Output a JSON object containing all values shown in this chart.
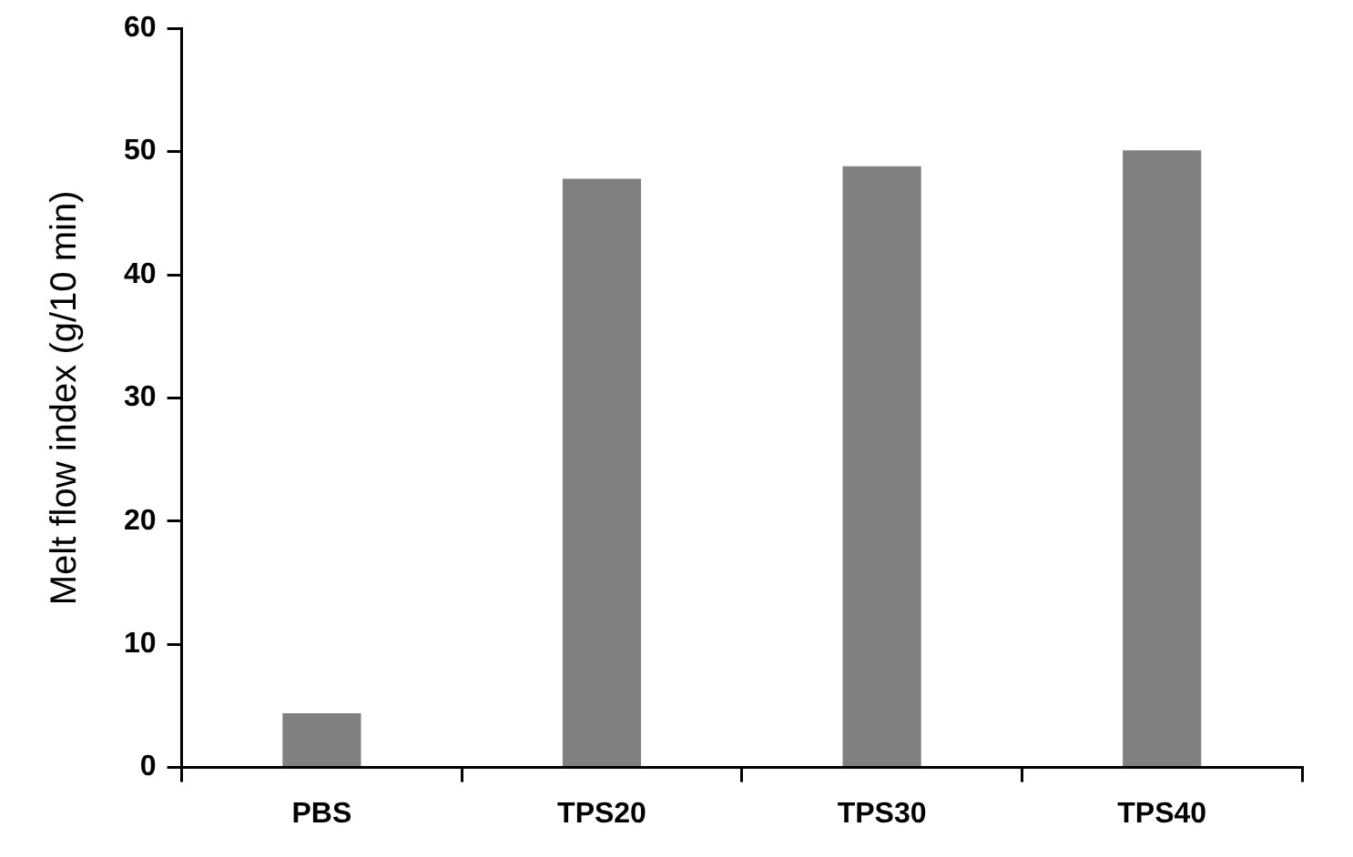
{
  "chart_data": {
    "type": "bar",
    "ylabel": "Melt flow index (g/10 min)",
    "categories": [
      "PBS",
      "TPS20",
      "TPS30",
      "TPS40"
    ],
    "values": [
      4.4,
      47.8,
      48.8,
      50.1
    ],
    "color": "#808080",
    "ylim": [
      0,
      60
    ],
    "yticks": [
      0,
      10,
      20,
      30,
      40,
      50,
      60
    ],
    "grid": false,
    "legend": false
  }
}
